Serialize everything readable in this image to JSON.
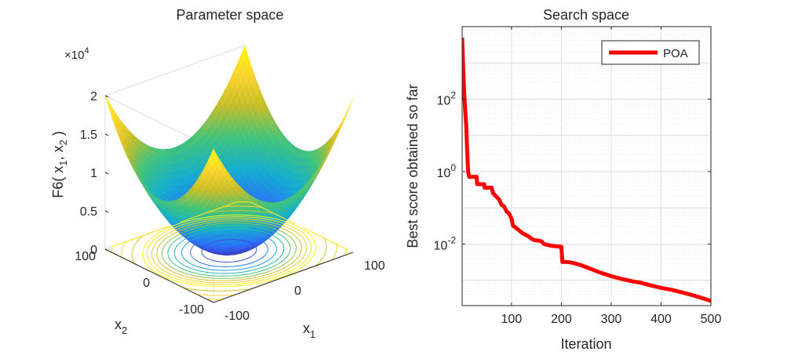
{
  "chart_data": [
    {
      "type": "surface",
      "title": "Parameter space",
      "xlabel": "x",
      "xlabel_sub": "1",
      "ylabel": "x",
      "ylabel_sub": "2",
      "zlabel": {
        "prefix": "F6( x",
        "sub1": "1",
        "mid": ", x",
        "sub2": "2",
        "suffix": " )"
      },
      "z_exponent": {
        "base": "×10",
        "power": "4"
      },
      "x_range": [
        -100,
        100
      ],
      "y_range": [
        -100,
        100
      ],
      "z_range": [
        0,
        20000
      ],
      "x_ticks": [
        "-100",
        "0",
        "100"
      ],
      "y_ticks": [
        "-100",
        "0",
        "100"
      ],
      "z_ticks": [
        "0",
        "0.5",
        "1",
        "1.5",
        "2"
      ],
      "function": "x1^2 + x2^2",
      "colormap": [
        "#3e26a8",
        "#2f6ff9",
        "#15aed0",
        "#41c47c",
        "#c6be2a",
        "#fcd42f",
        "#f9fb0e"
      ],
      "contour_levels": 10
    },
    {
      "type": "line",
      "title": "Search space",
      "xlabel": "Iteration",
      "ylabel": "Best score obtained so far",
      "xlim": [
        1,
        500
      ],
      "yscale": "log",
      "ylim": [
        0.0002,
        10000
      ],
      "x_ticks": [
        "100",
        "200",
        "300",
        "400",
        "500"
      ],
      "y_ticks": [
        {
          "base": "10",
          "exp": "2"
        },
        {
          "base": "10",
          "exp": "0"
        },
        {
          "base": "10",
          "exp": "-2"
        }
      ],
      "grid": true,
      "legend_position": "top-right",
      "series": [
        {
          "name": "POA",
          "color": "#ff0000",
          "x": [
            1,
            3,
            5,
            7,
            9,
            11,
            13,
            15,
            20,
            30,
            31,
            45,
            46,
            60,
            63,
            70,
            75,
            80,
            85,
            90,
            95,
            100,
            103,
            108,
            110,
            115,
            122,
            128,
            135,
            140,
            145,
            160,
            165,
            180,
            195,
            200,
            202,
            205,
            212,
            220,
            228,
            240,
            250,
            262,
            270,
            280,
            300,
            320,
            340,
            360,
            380,
            400,
            420,
            440,
            460,
            480,
            490,
            500
          ],
          "y": [
            5000,
            700,
            170,
            50,
            20,
            3.5,
            1.0,
            0.72,
            0.72,
            0.72,
            0.45,
            0.45,
            0.36,
            0.36,
            0.25,
            0.2,
            0.17,
            0.12,
            0.11,
            0.08,
            0.07,
            0.05,
            0.032,
            0.029,
            0.027,
            0.024,
            0.02,
            0.018,
            0.016,
            0.014,
            0.013,
            0.012,
            0.01,
            0.009,
            0.0085,
            0.0085,
            0.0032,
            0.0032,
            0.0032,
            0.0031,
            0.0029,
            0.0026,
            0.0023,
            0.002,
            0.0018,
            0.0016,
            0.0013,
            0.0011,
            0.00095,
            0.00085,
            0.00072,
            0.00062,
            0.00055,
            0.00047,
            0.0004,
            0.00033,
            0.0003,
            0.00027
          ]
        }
      ]
    }
  ]
}
